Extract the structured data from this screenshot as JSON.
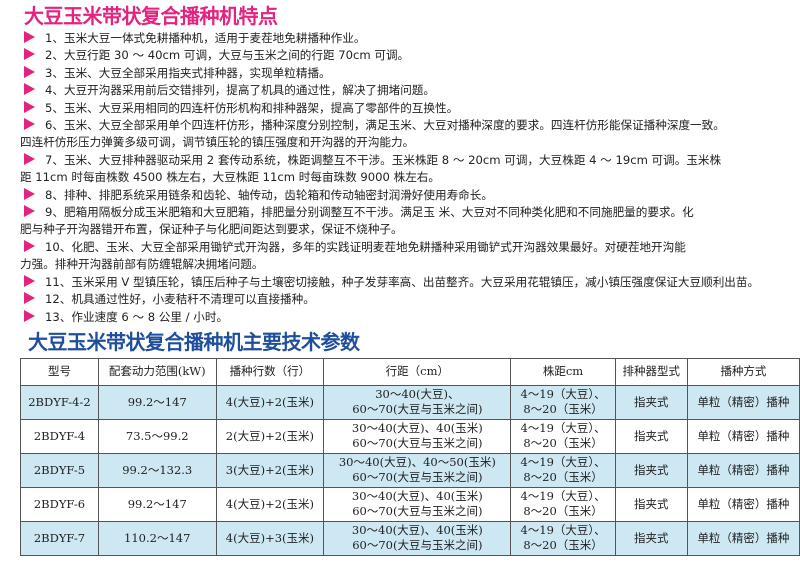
{
  "features_title": "大豆玉米带状复合播种机特点",
  "features": [
    {
      "text": "1、玉米大豆一体式免耕播种机，适用于麦茬地免耕播种作业。"
    },
    {
      "text": "2、大豆行距 30 ～ 40cm 可调，大豆与玉米之间的行距 70cm 可调。"
    },
    {
      "text": "3、玉米、大豆全部采用指夹式排种器，实现单粒精播。"
    },
    {
      "text": "4、大豆开沟器采用前后交错排列，提高了机具的通过性，解决了拥堵问题。"
    },
    {
      "text": "5、玉米、大豆采用相同的四连杆仿形机构和排种器架，提高了零部件的互换性。"
    },
    {
      "text": "6、玉米、大豆全部采用单个四连杆仿形，播种深度分别控制，满足玉米、大豆对播种深度的要求。四连杆仿形能保证播种深度一致。",
      "cont": "四连杆仿形压力弹簧多级可调，调节镇压轮的镇压强度和开沟器的开沟能力。"
    },
    {
      "text": "7、玉米、大豆排种器驱动采用 2 套传动系统，株距调整互不干涉。玉米株距 8 ～ 20cm 可调，大豆株距 4 ～ 19cm 可调。玉米株",
      "cont": "距 11cm 时每亩株数 4500 株左右，大豆株距 11cm 时每亩珠数 9000 株左右。"
    },
    {
      "text": "8、排种、排肥系统采用链条和齿轮、轴传动，齿轮箱和传动轴密封润滑好使用寿命长。"
    },
    {
      "text": "9、肥箱用隔板分成玉米肥箱和大豆肥箱，排肥量分别调整互不干涉。满足玉 米、大豆对不同种类化肥和不同施肥量的要求。化",
      "cont": "肥与种子开沟器错开布置，保证种子与化肥间距达到要求，保证不烧种子。"
    },
    {
      "text": "10、化肥、玉米、大豆全部采用锄铲式开沟器，多年的实践证明麦茬地免耕播种采用锄铲式开沟器效果最好。对硬茬地开沟能",
      "cont": "力强。排种开沟器前部有防缠辊解决拥堵问题。"
    },
    {
      "text": "11、玉米采用 V 型镇压轮，镇压后种子与土壤密切接触，种子发芽率高、出苗整齐。大豆采用花辊镇压，减小镇压强度保证大豆顺利出苗。"
    },
    {
      "text": "12、机具通过性好，小麦秸秆不清理可以直接播种。"
    },
    {
      "text": "13、作业速度 6 ～ 8 公里 / 小时。"
    }
  ],
  "params_title": "大豆玉米带状复合播种机主要技术参数",
  "table": {
    "headers": [
      "型号",
      "配套动力范围(kW)",
      "播种行数（行）",
      "行距（cm）",
      "株距cm",
      "排种器型式",
      "播种方式"
    ],
    "rows": [
      [
        "2BDYF-4-2",
        "99.2～147",
        "4(大豆)+2(玉米)",
        "30～40(大豆)、",
        "60～70(大豆与玉米之间)",
        "4～19（大豆）、",
        "8～20（玉米）",
        "指夹式",
        "单粒（精密）播种"
      ],
      [
        "2BDYF-4",
        "73.5～99.2",
        "2(大豆)+2(玉米)",
        "30～40(大豆)、40(玉米)",
        "60～70(大豆与玉米之间)",
        "4～19（大豆）、",
        "8～20（玉米）",
        "指夹式",
        "单粒（精密）播种"
      ],
      [
        "2BDYF-5",
        "99.2～132.3",
        "3(大豆)+2(玉米)",
        "30～40(大豆)、40～50(玉米)",
        "60～70(大豆与玉米之间)",
        "4～19（大豆）、",
        "8～20（玉米）",
        "指夹式",
        "单粒（精密）播种"
      ],
      [
        "2BDYF-6",
        "99.2～147",
        "4(大豆)+2(玉米)",
        "30～40(大豆)、40(玉米)",
        "60～70(大豆与玉米之间)",
        "4～19（大豆）、",
        "8～20（玉米）",
        "指夹式",
        "单粒（精密）播种"
      ],
      [
        "2BDYF-7",
        "110.2～147",
        "4(大豆)+3(玉米)",
        "30～40(大豆)、40(玉米)",
        "60～70(大豆与玉米之间)",
        "4～19（大豆）、",
        "8～20（玉米）",
        "指夹式",
        "单粒（精密）播种"
      ]
    ]
  },
  "colors": {
    "bullet": "#e2237f",
    "title1": "#e2237f",
    "title2": "#1f4f9c",
    "row_highlight": "#cde8f3"
  }
}
